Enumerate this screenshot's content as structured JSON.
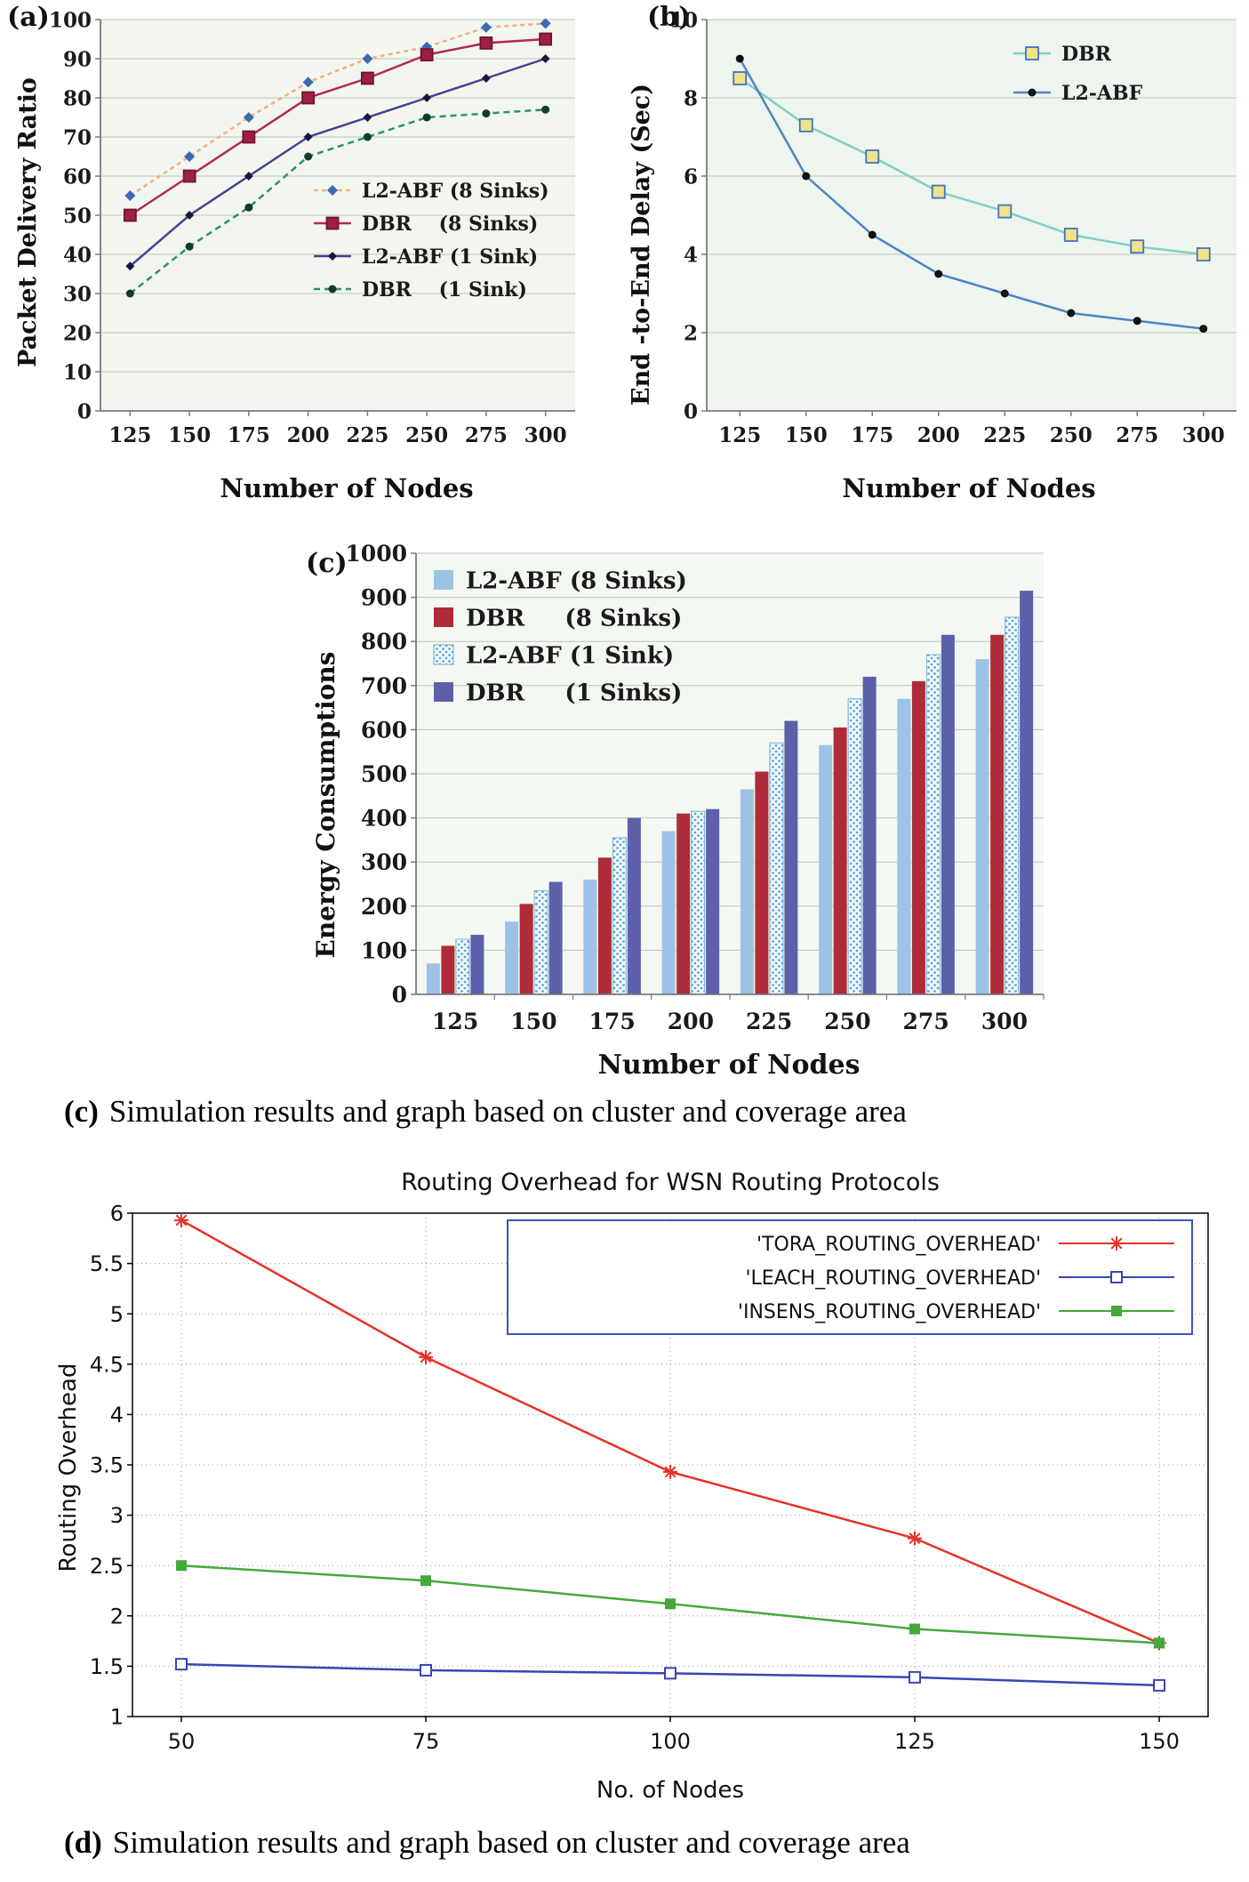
{
  "panels": {
    "a": {
      "label": "(a)",
      "ylabel": "Packet Delivery Ratio",
      "xlabel": "Number of Nodes"
    },
    "b": {
      "label": "(b)",
      "ylabel": "End -to-End Delay (Sec)",
      "xlabel": "Number of Nodes"
    },
    "c": {
      "label": "(c)",
      "ylabel": "Energy Consumptions",
      "xlabel": "Number of Nodes"
    },
    "d": {
      "title": "Routing Overhead for WSN Routing Protocols",
      "ylabel": "Routing Overhead",
      "xlabel": "No. of Nodes"
    }
  },
  "captions": {
    "c": {
      "label": "(c)",
      "text": "Simulation results and graph based on cluster and coverage area"
    },
    "d": {
      "label": "(d)",
      "text": "Simulation results and graph based on cluster and coverage area"
    }
  },
  "chart_data": [
    {
      "id": "a",
      "type": "line",
      "title": "",
      "xlabel": "Number of Nodes",
      "ylabel": "Packet Delivery Ratio",
      "categories": [
        125,
        150,
        175,
        200,
        225,
        250,
        275,
        300
      ],
      "ylim": [
        0,
        100
      ],
      "ytick": 10,
      "grid": "horizontal",
      "legend_position": "inside-right-middle",
      "series": [
        {
          "name": "L2-ABF (8 Sinks)",
          "values": [
            55,
            65,
            75,
            84,
            90,
            93,
            98,
            99
          ],
          "color": "#f1b183",
          "dash": "5,4",
          "marker": "diamond",
          "marker_color": "#3c68b7"
        },
        {
          "name": "DBR    (8 Sinks)",
          "values": [
            50,
            60,
            70,
            80,
            85,
            91,
            94,
            95
          ],
          "color": "#b3294d",
          "dash": "",
          "marker": "square",
          "marker_color": "#9d2044",
          "marker_stroke": "#6e1430"
        },
        {
          "name": "L2-ABF (1 Sink)",
          "values": [
            37,
            50,
            60,
            70,
            75,
            80,
            85,
            90
          ],
          "color": "#4a3f95",
          "dash": "",
          "marker": "diamond",
          "marker_color": "#17173f"
        },
        {
          "name": "DBR    (1 Sink)",
          "values": [
            30,
            42,
            52,
            65,
            70,
            75,
            76,
            77
          ],
          "color": "#2e8e71",
          "dash": "7,5",
          "marker": "circle",
          "marker_color": "#123a2e"
        }
      ]
    },
    {
      "id": "b",
      "type": "line",
      "title": "",
      "xlabel": "Number of Nodes",
      "ylabel": "End -to-End Delay (Sec)",
      "categories": [
        125,
        150,
        175,
        200,
        225,
        250,
        275,
        300
      ],
      "ylim": [
        0,
        10
      ],
      "ytick": 2,
      "grid": "horizontal",
      "legend_position": "inside-top-right",
      "series": [
        {
          "name": "DBR",
          "values": [
            8.5,
            7.3,
            6.5,
            5.6,
            5.1,
            4.5,
            4.2,
            4.0
          ],
          "color": "#82cfc3",
          "dash": "",
          "marker": "square",
          "marker_color": "#f1e387",
          "marker_stroke": "#4472c4"
        },
        {
          "name": "L2-ABF",
          "values": [
            9.0,
            6.0,
            4.5,
            3.5,
            3.0,
            2.5,
            2.3,
            2.1
          ],
          "color": "#4f84c4",
          "dash": "",
          "marker": "circle",
          "marker_color": "#101010"
        }
      ]
    },
    {
      "id": "c",
      "type": "bar",
      "title": "",
      "xlabel": "Number of Nodes",
      "ylabel": "Energy Consumptions",
      "categories": [
        125,
        150,
        175,
        200,
        225,
        250,
        275,
        300
      ],
      "ylim": [
        0,
        1000
      ],
      "ytick": 100,
      "grid": "horizontal",
      "legend_position": "inside-top-left",
      "series": [
        {
          "name": "L2-ABF (8 Sinks)",
          "values": [
            70,
            165,
            260,
            370,
            465,
            565,
            670,
            760
          ],
          "color": "#9cc3e5"
        },
        {
          "name": "DBR     (8 Sinks)",
          "values": [
            110,
            205,
            310,
            410,
            505,
            605,
            710,
            815
          ],
          "color": "#af2b39"
        },
        {
          "name": "L2-ABF (1 Sink)",
          "values": [
            125,
            235,
            355,
            415,
            570,
            670,
            770,
            855
          ],
          "color": "#bfe3f2",
          "pattern": "dots"
        },
        {
          "name": "DBR     (1 Sinks)",
          "values": [
            135,
            255,
            400,
            420,
            620,
            720,
            815,
            915
          ],
          "color": "#5d60a9"
        }
      ]
    },
    {
      "id": "d",
      "type": "line",
      "title": "Routing Overhead for WSN Routing Protocols",
      "xlabel": "No. of Nodes",
      "ylabel": "Routing Overhead",
      "x": [
        50,
        75,
        100,
        125,
        150
      ],
      "xlim": [
        45,
        155
      ],
      "xticks": [
        50,
        75,
        100,
        125,
        150
      ],
      "ylim": [
        1,
        6
      ],
      "ytick": 0.5,
      "grid": "both-dotted",
      "legend_position": "inside-top-right-box",
      "series": [
        {
          "name": "'TORA_ROUTING_OVERHEAD'",
          "values": [
            5.93,
            4.57,
            3.43,
            2.77,
            1.73
          ],
          "color": "#e63228",
          "dash": "",
          "marker": "asterisk"
        },
        {
          "name": "'LEACH_ROUTING_OVERHEAD'",
          "values": [
            1.52,
            1.46,
            1.43,
            1.39,
            1.31
          ],
          "color": "#3a45b4",
          "dash": "",
          "marker": "open-square"
        },
        {
          "name": "'INSENS_ROUTING_OVERHEAD'",
          "values": [
            2.5,
            2.35,
            2.12,
            1.87,
            1.73
          ],
          "color": "#46a83c",
          "dash": "",
          "marker": "square"
        }
      ]
    }
  ]
}
